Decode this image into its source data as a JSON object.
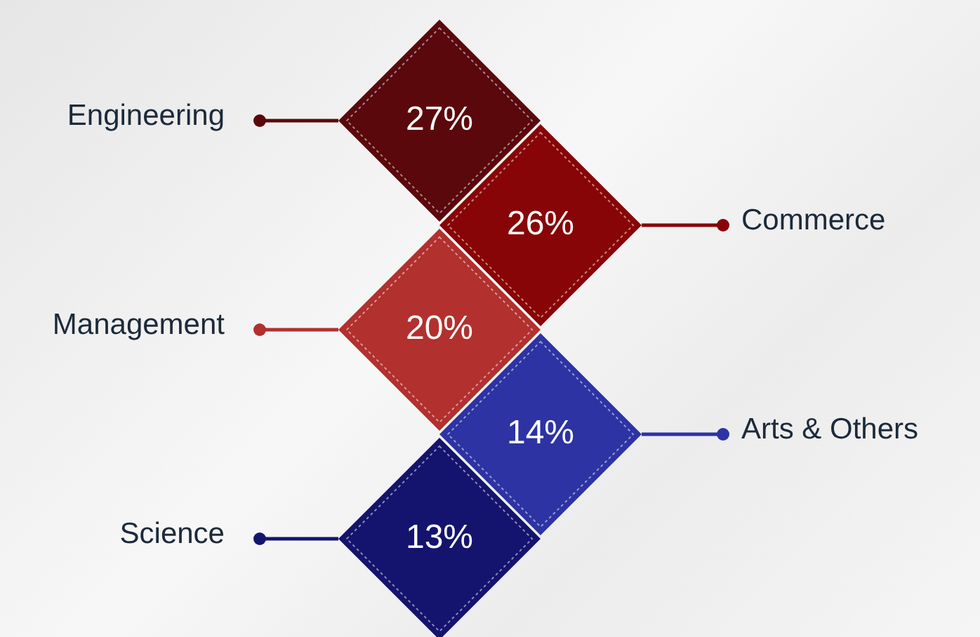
{
  "chart_data": {
    "type": "other",
    "categories": [
      "Engineering",
      "Commerce",
      "Management",
      "Arts & Others",
      "Science"
    ],
    "values": [
      27,
      26,
      20,
      14,
      13
    ],
    "value_labels": [
      "27%",
      "26%",
      "20%",
      "14%",
      "13%"
    ],
    "colors": [
      "#5a080c",
      "#880507",
      "#b2302e",
      "#2d33a3",
      "#14146e"
    ]
  }
}
